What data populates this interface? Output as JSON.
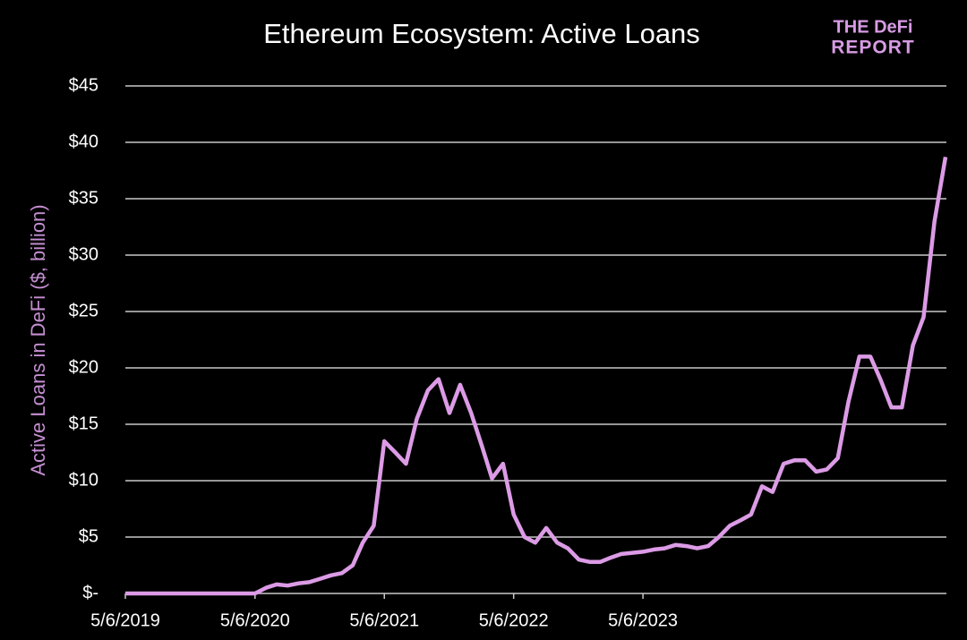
{
  "chart_data": {
    "type": "line",
    "title": "Ethereum Ecosystem: Active Loans",
    "brand": [
      "THE DeFi",
      "REPORT"
    ],
    "y_label": "Active Loans in DeFi ($, billion)",
    "x": [
      "5/6/2019",
      "6/6/2019",
      "7/6/2019",
      "8/6/2019",
      "9/6/2019",
      "10/6/2019",
      "11/6/2019",
      "12/6/2019",
      "1/6/2020",
      "2/6/2020",
      "3/6/2020",
      "4/6/2020",
      "5/6/2020",
      "6/6/2020",
      "7/6/2020",
      "8/6/2020",
      "9/6/2020",
      "10/6/2020",
      "11/6/2020",
      "12/6/2020",
      "1/6/2021",
      "2/6/2021",
      "3/6/2021",
      "4/6/2021",
      "5/6/2021",
      "6/6/2021",
      "7/6/2021",
      "8/6/2021",
      "9/6/2021",
      "10/6/2021",
      "11/6/2021",
      "12/6/2021",
      "1/6/2022",
      "2/6/2022",
      "3/6/2022",
      "4/6/2022",
      "5/6/2022",
      "6/6/2022",
      "7/6/2022",
      "8/6/2022",
      "9/6/2022",
      "10/6/2022",
      "11/6/2022",
      "12/6/2022",
      "1/6/2023",
      "2/6/2023",
      "3/6/2023",
      "4/6/2023",
      "5/6/2023",
      "6/6/2023",
      "7/6/2023",
      "8/6/2023",
      "9/6/2023",
      "10/6/2023",
      "11/6/2023",
      "12/6/2023",
      "1/6/2024",
      "2/6/2024",
      "3/6/2024",
      "4/6/2024",
      "5/6/2024",
      "6/6/2024",
      "7/6/2024",
      "8/6/2024",
      "9/6/2024",
      "10/6/2024",
      "11/6/2024",
      "12/6/2024",
      "1/6/2025",
      "2/6/2025",
      "3/6/2025",
      "4/6/2025",
      "5/6/2025",
      "6/6/2025",
      "7/6/2025",
      "8/6/2025",
      "9/6/2025"
    ],
    "series": [
      {
        "name": "Active Loans",
        "color": "#dc9be6",
        "values": [
          0,
          0,
          0,
          0,
          0,
          0,
          0,
          0,
          0,
          0,
          0,
          0,
          0,
          0.5,
          0.8,
          0.7,
          0.9,
          1.0,
          1.3,
          1.6,
          1.8,
          2.5,
          4.5,
          6.0,
          13.5,
          12.5,
          11.5,
          15.5,
          18.0,
          19.0,
          16.0,
          18.5,
          16.0,
          13.0,
          10.2,
          11.5,
          7.0,
          5.0,
          4.5,
          5.8,
          4.5,
          4.0,
          3.0,
          2.8,
          2.8,
          3.2,
          3.5,
          3.6,
          3.7,
          3.9,
          4.0,
          4.3,
          4.2,
          4.0,
          4.2,
          5.0,
          6.0,
          6.5,
          7.0,
          9.5,
          9.0,
          11.5,
          11.8,
          11.8,
          10.8,
          11.0,
          12.0,
          17.0,
          21.0,
          21.0,
          19.0,
          16.5,
          16.5,
          22.0,
          24.5,
          33.0,
          38.7
        ]
      }
    ],
    "xlim": [
      "5/6/2019",
      "9/6/2025"
    ],
    "xticks": [
      "5/6/2019",
      "5/6/2020",
      "5/6/2021",
      "5/6/2022",
      "5/6/2023"
    ],
    "ylim": [
      0,
      45
    ],
    "yticks": [
      {
        "value": 0,
        "label": "$-"
      },
      {
        "value": 5,
        "label": "$5"
      },
      {
        "value": 10,
        "label": "$10"
      },
      {
        "value": 15,
        "label": "$15"
      },
      {
        "value": 20,
        "label": "$20"
      },
      {
        "value": 25,
        "label": "$25"
      },
      {
        "value": 30,
        "label": "$30"
      },
      {
        "value": 35,
        "label": "$35"
      },
      {
        "value": 40,
        "label": "$40"
      },
      {
        "value": 45,
        "label": "$45"
      }
    ],
    "grid": true
  }
}
